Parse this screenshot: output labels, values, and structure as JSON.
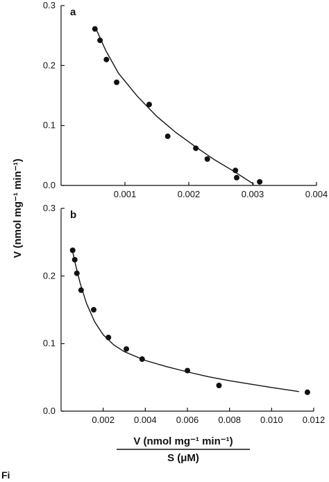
{
  "ylabel": "V (nmol mg⁻¹ min⁻¹)",
  "xlabel_numerator": "V (nmol mg⁻¹ min⁻¹)",
  "xlabel_denominator": "S (μM)",
  "caption_fragment": "Fi",
  "chart_data": [
    {
      "type": "scatter",
      "panel_label": "a",
      "xlim": [
        0,
        0.004
      ],
      "ylim": [
        0,
        0.3
      ],
      "xticks": [
        {
          "value": 0.001,
          "label": "0.001"
        },
        {
          "value": 0.002,
          "label": "0.002"
        },
        {
          "value": 0.003,
          "label": "0.003"
        },
        {
          "value": 0.004,
          "label": "0.004"
        }
      ],
      "yticks": [
        {
          "value": 0.0,
          "label": "0.0"
        },
        {
          "value": 0.1,
          "label": "0.1"
        },
        {
          "value": 0.2,
          "label": "0.2"
        },
        {
          "value": 0.3,
          "label": "0.3"
        }
      ],
      "points": [
        {
          "x": 0.00053,
          "y": 0.261
        },
        {
          "x": 0.00061,
          "y": 0.242
        },
        {
          "x": 0.00071,
          "y": 0.21
        },
        {
          "x": 0.00087,
          "y": 0.172
        },
        {
          "x": 0.00138,
          "y": 0.135
        },
        {
          "x": 0.00167,
          "y": 0.082
        },
        {
          "x": 0.00211,
          "y": 0.062
        },
        {
          "x": 0.00229,
          "y": 0.044
        },
        {
          "x": 0.00273,
          "y": 0.025
        },
        {
          "x": 0.00275,
          "y": 0.013
        },
        {
          "x": 0.00311,
          "y": 0.006
        }
      ],
      "curve": [
        {
          "x": 0.00053,
          "y": 0.265
        },
        {
          "x": 0.0007,
          "y": 0.225
        },
        {
          "x": 0.0009,
          "y": 0.187
        },
        {
          "x": 0.0012,
          "y": 0.148
        },
        {
          "x": 0.0015,
          "y": 0.115
        },
        {
          "x": 0.0018,
          "y": 0.088
        },
        {
          "x": 0.0021,
          "y": 0.065
        },
        {
          "x": 0.0024,
          "y": 0.043
        },
        {
          "x": 0.0027,
          "y": 0.024
        },
        {
          "x": 0.00302,
          "y": 0.002
        }
      ]
    },
    {
      "type": "scatter",
      "panel_label": "b",
      "xlim": [
        0,
        0.012
      ],
      "ylim": [
        0,
        0.3
      ],
      "xticks": [
        {
          "value": 0.002,
          "label": "0.002"
        },
        {
          "value": 0.004,
          "label": "0.004"
        },
        {
          "value": 0.006,
          "label": "0.006"
        },
        {
          "value": 0.008,
          "label": "0.008"
        },
        {
          "value": 0.01,
          "label": "0.010"
        },
        {
          "value": 0.012,
          "label": "0.012"
        }
      ],
      "yticks": [
        {
          "value": 0.0,
          "label": "0.0"
        },
        {
          "value": 0.1,
          "label": "0.1"
        },
        {
          "value": 0.2,
          "label": "0.2"
        },
        {
          "value": 0.3,
          "label": "0.3"
        }
      ],
      "points": [
        {
          "x": 0.00055,
          "y": 0.238
        },
        {
          "x": 0.00065,
          "y": 0.224
        },
        {
          "x": 0.00075,
          "y": 0.204
        },
        {
          "x": 0.00095,
          "y": 0.179
        },
        {
          "x": 0.00155,
          "y": 0.15
        },
        {
          "x": 0.00225,
          "y": 0.109
        },
        {
          "x": 0.0031,
          "y": 0.092
        },
        {
          "x": 0.00385,
          "y": 0.077
        },
        {
          "x": 0.006,
          "y": 0.06
        },
        {
          "x": 0.0075,
          "y": 0.038
        },
        {
          "x": 0.0117,
          "y": 0.028
        }
      ],
      "curve": [
        {
          "x": 0.00055,
          "y": 0.236
        },
        {
          "x": 0.0007,
          "y": 0.215
        },
        {
          "x": 0.0009,
          "y": 0.19
        },
        {
          "x": 0.0012,
          "y": 0.16
        },
        {
          "x": 0.0016,
          "y": 0.132
        },
        {
          "x": 0.002,
          "y": 0.113
        },
        {
          "x": 0.0025,
          "y": 0.098
        },
        {
          "x": 0.003,
          "y": 0.088
        },
        {
          "x": 0.004,
          "y": 0.075
        },
        {
          "x": 0.005,
          "y": 0.066
        },
        {
          "x": 0.006,
          "y": 0.058
        },
        {
          "x": 0.007,
          "y": 0.051
        },
        {
          "x": 0.008,
          "y": 0.045
        },
        {
          "x": 0.009,
          "y": 0.04
        },
        {
          "x": 0.01,
          "y": 0.035
        },
        {
          "x": 0.0113,
          "y": 0.029
        }
      ]
    }
  ]
}
